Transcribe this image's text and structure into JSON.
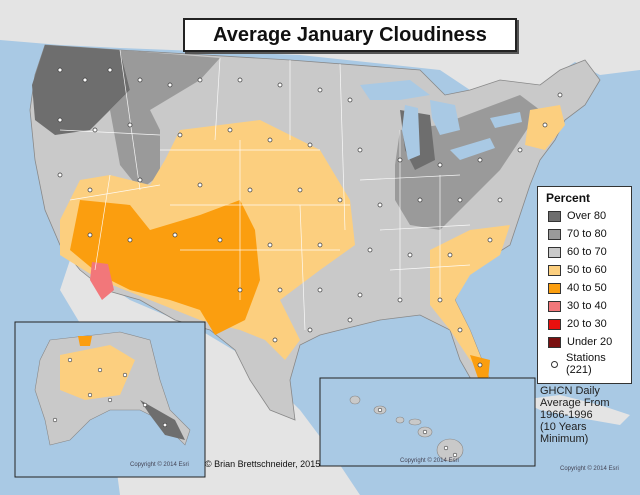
{
  "title": "Average January Cloudiness",
  "legend": {
    "title": "Percent",
    "items": [
      {
        "label": "Over 80",
        "color": "#6e6e6e"
      },
      {
        "label": "70 to 80",
        "color": "#9a9a9a"
      },
      {
        "label": "60 to 70",
        "color": "#c9c9c9"
      },
      {
        "label": "50 to 60",
        "color": "#fccf7f"
      },
      {
        "label": "40 to 50",
        "color": "#fb9e0f"
      },
      {
        "label": "30 to 40",
        "color": "#f2777a"
      },
      {
        "label": "20 to 30",
        "color": "#e8100e"
      },
      {
        "label": "Under 20",
        "color": "#7a1010"
      }
    ],
    "stations_label": "Stations",
    "stations_count": "(221)"
  },
  "source_lines": [
    "GHCN Daily",
    "Average From",
    "1966-1996",
    "(10 Years",
    "Minimum)"
  ],
  "credit": "© Brian Brettschneider, 2015",
  "copyright_notes": [
    "Copyright © 2014 Esri",
    "Copyright © 2014 Esri",
    "Copyright © 2014 Esri"
  ],
  "colors": {
    "water": "#a9c9e4",
    "land_outside": "#e4e4e4",
    "state_border": "#ffffff"
  }
}
